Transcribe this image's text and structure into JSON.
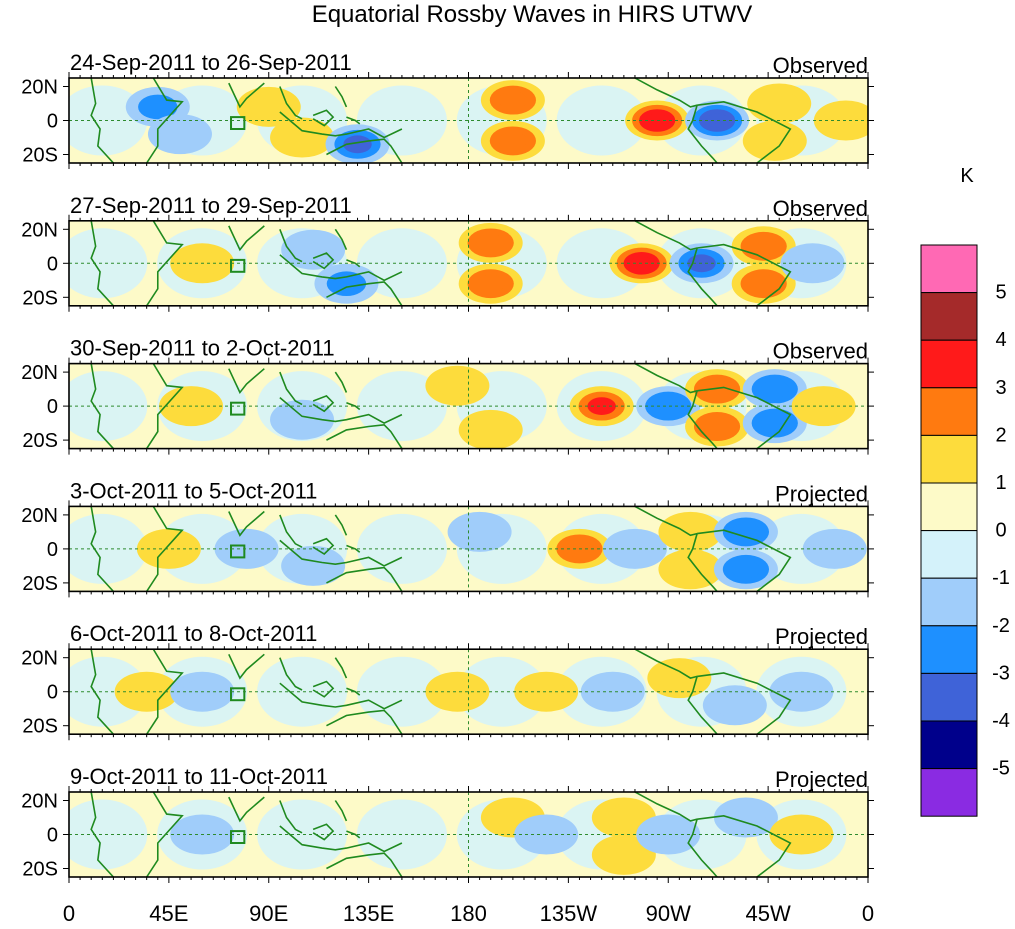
{
  "chart_data": {
    "type": "heatmap",
    "title": "Equatorial Rossby Waves in HIRS UTWV",
    "units": "K",
    "x_tick_labels": [
      "0",
      "45E",
      "90E",
      "135E",
      "180",
      "135W",
      "90W",
      "45W",
      "0"
    ],
    "y_tick_labels": [
      "20N",
      "0",
      "20S"
    ],
    "xlim": [
      0,
      360
    ],
    "ylim": [
      -25,
      25
    ],
    "colorbar": {
      "label": "K",
      "levels": [
        "-5",
        "-4",
        "-3",
        "-2",
        "-1",
        "0",
        "1",
        "2",
        "3",
        "4",
        "5"
      ],
      "colors": [
        "#8a2be2",
        "#00008b",
        "#3f63d8",
        "#1e90ff",
        "#a0cdfa",
        "#d4f2fa",
        "#fdfac8",
        "#fddc3c",
        "#ff7a10",
        "#ff1a1a",
        "#a52a2a",
        "#ff69b4"
      ]
    },
    "panels": [
      {
        "date_range": "24-Sep-2011 to 26-Sep-2011",
        "type_label": "Observed",
        "anomalies": [
          {
            "lon": 90,
            "lat": 8,
            "value": 1.5
          },
          {
            "lon": 105,
            "lat": -10,
            "value": 1.5
          },
          {
            "lon": 130,
            "lat": -14,
            "value": -3
          },
          {
            "lon": 40,
            "lat": 8,
            "value": -2
          },
          {
            "lon": 50,
            "lat": -8,
            "value": -1.5
          },
          {
            "lon": 200,
            "lat": 12,
            "value": 2.5
          },
          {
            "lon": 200,
            "lat": -12,
            "value": 2.5
          },
          {
            "lon": 265,
            "lat": 0,
            "value": 3.5
          },
          {
            "lon": 292,
            "lat": 0,
            "value": -3.5
          },
          {
            "lon": 320,
            "lat": 10,
            "value": 1.5
          },
          {
            "lon": 318,
            "lat": -12,
            "value": 1.5
          },
          {
            "lon": 350,
            "lat": 0,
            "value": 1
          }
        ]
      },
      {
        "date_range": "27-Sep-2011 to 29-Sep-2011",
        "type_label": "Observed",
        "anomalies": [
          {
            "lon": 60,
            "lat": 0,
            "value": 1.5
          },
          {
            "lon": 110,
            "lat": 8,
            "value": -1.5
          },
          {
            "lon": 125,
            "lat": -12,
            "value": -2
          },
          {
            "lon": 190,
            "lat": 12,
            "value": 2.5
          },
          {
            "lon": 190,
            "lat": -12,
            "value": 2.5
          },
          {
            "lon": 258,
            "lat": 0,
            "value": 3.5
          },
          {
            "lon": 285,
            "lat": 0,
            "value": -3
          },
          {
            "lon": 313,
            "lat": 10,
            "value": 2.5
          },
          {
            "lon": 313,
            "lat": -12,
            "value": 2.5
          },
          {
            "lon": 335,
            "lat": 0,
            "value": -1.5
          }
        ]
      },
      {
        "date_range": "30-Sep-2011 to 2-Oct-2011",
        "type_label": "Observed",
        "anomalies": [
          {
            "lon": 55,
            "lat": 0,
            "value": 1.5
          },
          {
            "lon": 105,
            "lat": -8,
            "value": -1.5
          },
          {
            "lon": 175,
            "lat": 12,
            "value": 1.5
          },
          {
            "lon": 190,
            "lat": -14,
            "value": 1.5
          },
          {
            "lon": 240,
            "lat": 0,
            "value": 3
          },
          {
            "lon": 270,
            "lat": 0,
            "value": -2.5
          },
          {
            "lon": 292,
            "lat": 10,
            "value": 2.5
          },
          {
            "lon": 292,
            "lat": -12,
            "value": 2.5
          },
          {
            "lon": 318,
            "lat": 10,
            "value": -2.5
          },
          {
            "lon": 318,
            "lat": -10,
            "value": -2.5
          },
          {
            "lon": 340,
            "lat": 0,
            "value": 1.5
          }
        ]
      },
      {
        "date_range": "3-Oct-2011 to 5-Oct-2011",
        "type_label": "Projected",
        "anomalies": [
          {
            "lon": 45,
            "lat": 0,
            "value": 1.5
          },
          {
            "lon": 80,
            "lat": 0,
            "value": -1.5
          },
          {
            "lon": 110,
            "lat": -10,
            "value": -1.5
          },
          {
            "lon": 185,
            "lat": 10,
            "value": -1.5
          },
          {
            "lon": 230,
            "lat": 0,
            "value": 2.5
          },
          {
            "lon": 255,
            "lat": 0,
            "value": -1.5
          },
          {
            "lon": 280,
            "lat": 10,
            "value": 1.5
          },
          {
            "lon": 280,
            "lat": -12,
            "value": 1.5
          },
          {
            "lon": 305,
            "lat": 10,
            "value": -2.5
          },
          {
            "lon": 305,
            "lat": -12,
            "value": -2.5
          },
          {
            "lon": 345,
            "lat": 0,
            "value": -1.5
          }
        ]
      },
      {
        "date_range": "6-Oct-2011 to 8-Oct-2011",
        "type_label": "Projected",
        "anomalies": [
          {
            "lon": 35,
            "lat": 0,
            "value": 1.5
          },
          {
            "lon": 60,
            "lat": 0,
            "value": -1.5
          },
          {
            "lon": 175,
            "lat": 0,
            "value": 1
          },
          {
            "lon": 215,
            "lat": 0,
            "value": 1.5
          },
          {
            "lon": 245,
            "lat": 0,
            "value": -1.5
          },
          {
            "lon": 275,
            "lat": 8,
            "value": 1.5
          },
          {
            "lon": 300,
            "lat": -8,
            "value": -1.5
          },
          {
            "lon": 330,
            "lat": 0,
            "value": -1.5
          }
        ]
      },
      {
        "date_range": "9-Oct-2011 to 11-Oct-2011",
        "type_label": "Projected",
        "anomalies": [
          {
            "lon": 60,
            "lat": 0,
            "value": -1.5
          },
          {
            "lon": 200,
            "lat": 10,
            "value": 1
          },
          {
            "lon": 215,
            "lat": 0,
            "value": -1.5
          },
          {
            "lon": 250,
            "lat": 10,
            "value": 1.5
          },
          {
            "lon": 250,
            "lat": -12,
            "value": 1.5
          },
          {
            "lon": 270,
            "lat": 0,
            "value": -1.5
          },
          {
            "lon": 305,
            "lat": 10,
            "value": -1.5
          },
          {
            "lon": 330,
            "lat": 0,
            "value": 1
          }
        ]
      }
    ]
  }
}
